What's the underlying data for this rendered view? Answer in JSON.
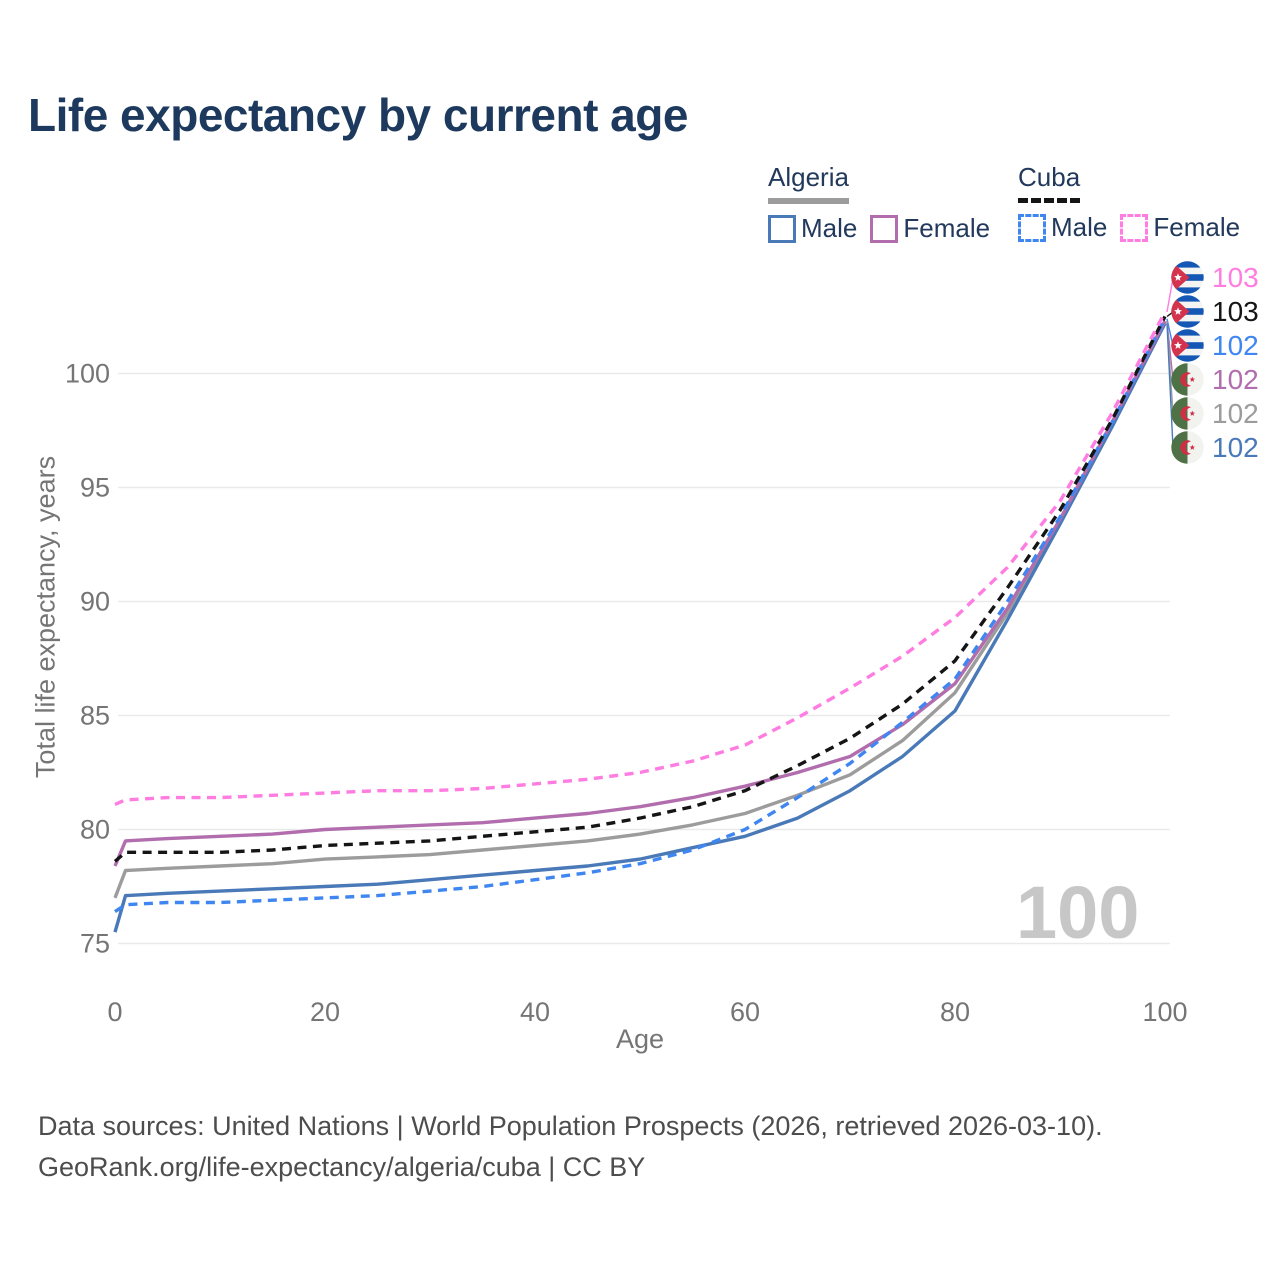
{
  "title": "Life expectancy by current age",
  "watermark": "100",
  "legend": {
    "algeria": {
      "label": "Algeria",
      "male_label": "Male",
      "female_label": "Female"
    },
    "cuba": {
      "label": "Cuba",
      "male_label": "Male",
      "female_label": "Female"
    }
  },
  "axes": {
    "x": {
      "title": "Age",
      "ticks": [
        0,
        20,
        40,
        60,
        80,
        100
      ],
      "range": [
        0,
        100
      ]
    },
    "y": {
      "title": "Total life expectancy, years",
      "ticks": [
        75,
        80,
        85,
        90,
        95,
        100
      ],
      "range": [
        75,
        100
      ]
    }
  },
  "colors": {
    "title_text": "#1d3a5e",
    "legend_text": "#22395c",
    "axis_text": "#757575",
    "gridline": "#eaeaea",
    "watermark": "#c7c7c7",
    "footer_text": "#4d4d4d",
    "algeria_male": "#4a79b8",
    "algeria_female": "#b16dad",
    "algeria_total": "#9c9c9c",
    "cuba_male": "#3f86f0",
    "cuba_female": "#ff7ce1",
    "cuba_total": "#151515"
  },
  "chart_data": {
    "type": "line",
    "title": "Life expectancy by current age",
    "xlabel": "Age",
    "ylabel": "Total life expectancy, years",
    "xlim": [
      0,
      100
    ],
    "ylim": [
      75,
      100
    ],
    "grid": "horizontal-light",
    "legend_position": "top-right",
    "x": [
      0,
      1,
      5,
      10,
      15,
      20,
      25,
      30,
      35,
      40,
      45,
      50,
      55,
      60,
      65,
      70,
      75,
      80,
      85,
      90,
      95,
      100
    ],
    "series": [
      {
        "id": "algeria_male",
        "name": "Algeria Male",
        "country": "Algeria",
        "sex": "male",
        "style": "solid",
        "color": "#4a79b8",
        "values": [
          75.5,
          77.1,
          77.2,
          77.3,
          77.4,
          77.5,
          77.6,
          77.8,
          78.0,
          78.2,
          78.4,
          78.7,
          79.2,
          79.7,
          80.5,
          81.7,
          83.2,
          85.2,
          89.2,
          93.4,
          97.7,
          102.2
        ]
      },
      {
        "id": "algeria_total",
        "name": "Algeria (both sexes)",
        "country": "Algeria",
        "sex": "total",
        "style": "solid",
        "color": "#9c9c9c",
        "values": [
          77.0,
          78.2,
          78.3,
          78.4,
          78.5,
          78.7,
          78.8,
          78.9,
          79.1,
          79.3,
          79.5,
          79.8,
          80.2,
          80.7,
          81.5,
          82.4,
          83.9,
          86.0,
          89.5,
          93.5,
          97.8,
          102.3
        ]
      },
      {
        "id": "algeria_female",
        "name": "Algeria Female",
        "country": "Algeria",
        "sex": "female",
        "style": "solid",
        "color": "#b16dad",
        "values": [
          78.4,
          79.5,
          79.6,
          79.7,
          79.8,
          80.0,
          80.1,
          80.2,
          80.3,
          80.5,
          80.7,
          81.0,
          81.4,
          81.9,
          82.5,
          83.2,
          84.6,
          86.4,
          89.7,
          93.6,
          97.9,
          102.3
        ]
      },
      {
        "id": "cuba_male",
        "name": "Cuba Male",
        "country": "Cuba",
        "sex": "male",
        "style": "dashed",
        "color": "#3f86f0",
        "values": [
          76.4,
          76.7,
          76.8,
          76.8,
          76.9,
          77.0,
          77.1,
          77.3,
          77.5,
          77.8,
          78.1,
          78.5,
          79.1,
          80.0,
          81.4,
          82.9,
          84.7,
          86.6,
          90.0,
          93.7,
          97.9,
          102.4
        ]
      },
      {
        "id": "cuba_total",
        "name": "Cuba (both sexes)",
        "country": "Cuba",
        "sex": "total",
        "style": "dashed",
        "color": "#151515",
        "values": [
          78.6,
          79.0,
          79.0,
          79.0,
          79.1,
          79.3,
          79.4,
          79.5,
          79.7,
          79.9,
          80.1,
          80.5,
          81.0,
          81.7,
          82.8,
          84.0,
          85.5,
          87.4,
          90.6,
          94.0,
          98.0,
          102.5
        ]
      },
      {
        "id": "cuba_female",
        "name": "Cuba Female",
        "country": "Cuba",
        "sex": "female",
        "style": "dashed",
        "color": "#ff7ce1",
        "values": [
          81.1,
          81.3,
          81.4,
          81.4,
          81.5,
          81.6,
          81.7,
          81.7,
          81.8,
          82.0,
          82.2,
          82.5,
          83.0,
          83.7,
          84.9,
          86.2,
          87.6,
          89.3,
          91.5,
          94.4,
          98.3,
          102.7
        ]
      }
    ]
  },
  "end_labels": [
    {
      "series": "cuba_female",
      "country": "Cuba",
      "label": "103",
      "color": "#ff7ce1"
    },
    {
      "series": "cuba_total",
      "country": "Cuba",
      "label": "103",
      "color": "#151515"
    },
    {
      "series": "cuba_male",
      "country": "Cuba",
      "label": "102",
      "color": "#3f86f0"
    },
    {
      "series": "algeria_female",
      "country": "Algeria",
      "label": "102",
      "color": "#b16dad"
    },
    {
      "series": "algeria_total",
      "country": "Algeria",
      "label": "102",
      "color": "#9c9c9c"
    },
    {
      "series": "algeria_male",
      "country": "Algeria",
      "label": "102",
      "color": "#4a79b8"
    }
  ],
  "footer": {
    "line1": "Data sources: United Nations | World Population Prospects (2026, retrieved 2026-03-10).",
    "line2": "GeoRank.org/life-expectancy/algeria/cuba | CC BY"
  }
}
